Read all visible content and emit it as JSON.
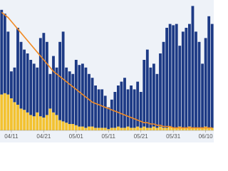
{
  "chart_data": {
    "type": "bar",
    "stacked": true,
    "categories": [
      null,
      null,
      null,
      "04/11",
      null,
      null,
      null,
      null,
      null,
      null,
      null,
      null,
      null,
      "04/21",
      null,
      null,
      null,
      null,
      null,
      null,
      null,
      null,
      null,
      "05/01",
      null,
      null,
      null,
      null,
      null,
      null,
      null,
      null,
      null,
      "05/11",
      null,
      null,
      null,
      null,
      null,
      null,
      null,
      null,
      null,
      "05/21",
      null,
      null,
      null,
      null,
      null,
      null,
      null,
      null,
      null,
      "05/31",
      null,
      null,
      null,
      null,
      null,
      null,
      null,
      null,
      null,
      "06/10",
      null,
      null
    ],
    "series": [
      {
        "name": "Yellow",
        "color": "#f3c230",
        "values": [
          28,
          29,
          28,
          25,
          22,
          20,
          17,
          16,
          14,
          12,
          11,
          14,
          11,
          10,
          12,
          17,
          14,
          12,
          8,
          7,
          6,
          5,
          5,
          4,
          3,
          3,
          2,
          3,
          3,
          2,
          2,
          2,
          2,
          1,
          2,
          2,
          3,
          2,
          2,
          3,
          2,
          2,
          3,
          2,
          3,
          2,
          2,
          3,
          2,
          3,
          2,
          2,
          3,
          2,
          2,
          3,
          2,
          2,
          3,
          2,
          2,
          2,
          2,
          3,
          2,
          2
        ]
      },
      {
        "name": "Blue",
        "color": "#1d3a85",
        "values": [
          66,
          62,
          49,
          21,
          27,
          60,
          52,
          47,
          46,
          43,
          41,
          35,
          61,
          66,
          57,
          27,
          44,
          37,
          61,
          70,
          43,
          41,
          39,
          51,
          48,
          49,
          47,
          41,
          38,
          33,
          30,
          30,
          25,
          17,
          22,
          28,
          32,
          36,
          39,
          29,
          33,
          30,
          35,
          28,
          52,
          61,
          47,
          49,
          42,
          57,
          67,
          78,
          80,
          80,
          81,
          63,
          75,
          78,
          80,
          95,
          75,
          67,
          50,
          69,
          87,
          81
        ]
      },
      {
        "name": "Trend",
        "type": "line",
        "color": "#f08a24",
        "values": [
          92,
          90,
          88,
          85,
          82,
          79,
          76,
          73,
          70,
          67,
          64,
          61,
          58,
          55,
          52,
          49,
          46,
          44,
          42,
          40,
          38,
          36,
          34,
          32,
          30,
          28,
          26,
          24,
          22,
          21,
          20,
          19,
          18,
          17,
          16,
          15,
          14,
          13,
          12,
          11,
          10,
          9,
          8,
          7,
          6,
          6,
          5,
          5,
          4,
          4,
          3,
          3,
          3,
          2,
          2,
          2,
          2,
          2,
          2,
          2,
          2,
          2,
          2,
          2,
          2,
          2
        ]
      }
    ],
    "ylim": [
      0,
      100
    ]
  }
}
